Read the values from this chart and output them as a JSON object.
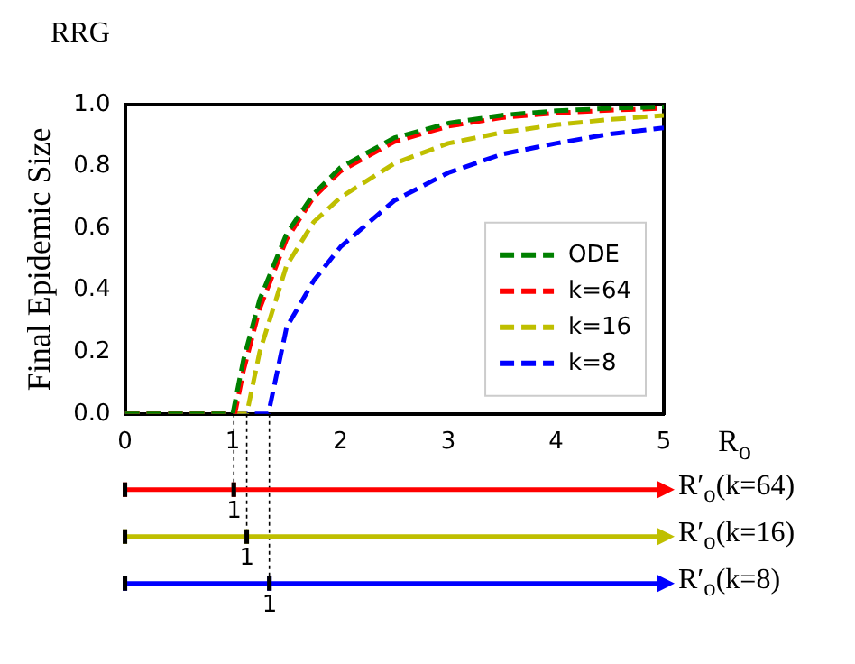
{
  "chart_data": {
    "type": "line",
    "title": "RRG",
    "xlabel": "R$_{o}$",
    "ylabel": "Final Epidemic Size",
    "xlim": [
      0,
      5
    ],
    "xticks": [
      0,
      1,
      2,
      3,
      4,
      5
    ],
    "ylim": [
      0,
      1
    ],
    "yticks": [
      {
        "value": 0,
        "label": "0.0"
      },
      {
        "value": 0.2,
        "label": "0.2"
      },
      {
        "value": 0.4,
        "label": "0.4"
      },
      {
        "value": 0.6,
        "label": "0.6"
      },
      {
        "value": 0.8,
        "label": "0.8"
      },
      {
        "value": 1,
        "label": "1.0"
      }
    ],
    "grid": false,
    "legend": "bottom right",
    "marker": "none",
    "line_style": "dashed",
    "series": [
      {
        "name": "ODE",
        "color": "#008000",
        "x": [
          0,
          1,
          1.1,
          1.25,
          1.5,
          1.75,
          2,
          2.5,
          3,
          3.5,
          4,
          4.5,
          5
        ],
        "values": [
          0,
          0,
          0.176,
          0.37,
          0.583,
          0.711,
          0.797,
          0.893,
          0.94,
          0.966,
          0.98,
          0.988,
          0.993
        ]
      },
      {
        "name": "k=64",
        "color": "#ff0000",
        "x": [
          0,
          1.02,
          1.1,
          1.25,
          1.5,
          1.75,
          2,
          2.5,
          3,
          3.5,
          4,
          4.5,
          5
        ],
        "values": [
          0,
          0,
          0.14,
          0.34,
          0.565,
          0.7,
          0.785,
          0.88,
          0.93,
          0.958,
          0.973,
          0.982,
          0.988
        ]
      },
      {
        "name": "k=16",
        "color": "#bfbf00",
        "x": [
          0,
          1.13,
          1.25,
          1.5,
          1.75,
          2,
          2.5,
          3,
          3.5,
          4,
          4.5,
          5
        ],
        "values": [
          0,
          0,
          0.2,
          0.48,
          0.62,
          0.7,
          0.81,
          0.875,
          0.91,
          0.935,
          0.952,
          0.965
        ]
      },
      {
        "name": "k=8",
        "color": "#0000ff",
        "x": [
          0,
          1.33,
          1.5,
          1.75,
          2,
          2.5,
          3,
          3.5,
          4,
          4.5,
          5
        ],
        "values": [
          0,
          0,
          0.28,
          0.43,
          0.54,
          0.69,
          0.78,
          0.84,
          0.875,
          0.905,
          0.925
        ]
      }
    ],
    "ref_lines": [
      {
        "axis": "x",
        "value": 1.01,
        "label": "1",
        "color": "#000000",
        "line_style": "dotted"
      },
      {
        "axis": "x",
        "value": 1.13,
        "label": "1",
        "color": "#000000",
        "line_style": "dotted"
      },
      {
        "axis": "x",
        "value": 1.34,
        "label": "1",
        "color": "#000000",
        "line_style": "dotted"
      }
    ],
    "annotations": [
      "R′$_{o}$(k=64)",
      "R′$_{o}$(k=16)",
      "R′$_{o}$(k=8)"
    ]
  }
}
